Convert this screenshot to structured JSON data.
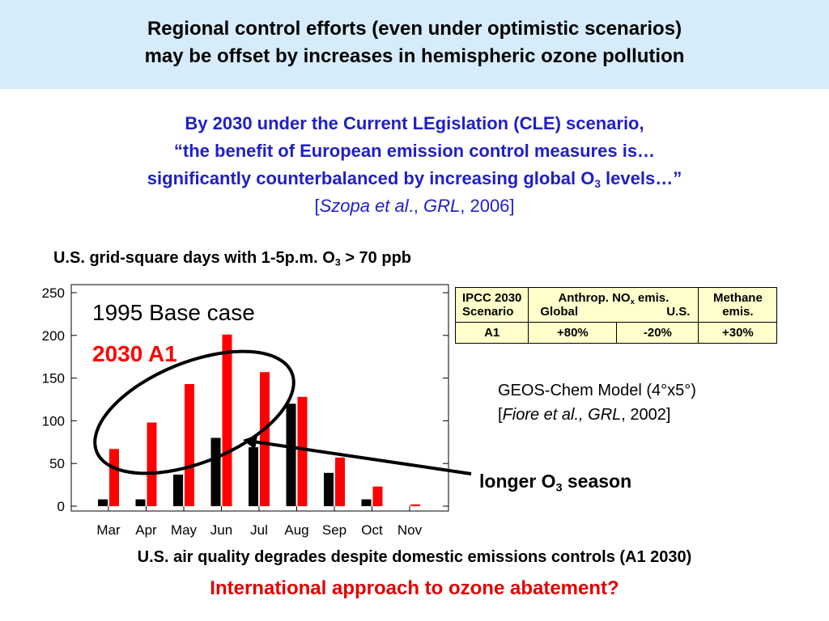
{
  "header": {
    "line1": "Regional control efforts (even under optimistic scenarios)",
    "line2": "may be offset by increases in hemispheric ozone pollution"
  },
  "quote": {
    "line1": "By 2030 under the Current LEgislation (CLE) scenario,",
    "line2": "“the benefit of European emission control measures is…",
    "line3_pre": "significantly counterbalanced by increasing global O",
    "line3_sub": "3",
    "line3_post": " levels…”",
    "cite_open": "[",
    "cite_author": "Szopa et al",
    "cite_mid": "., ",
    "cite_journal": "GRL",
    "cite_end": ", 2006]"
  },
  "chart_title": {
    "pre": "U.S. grid-square days with 1-5p.m. O",
    "sub": "3",
    "post": " > 70 ppb"
  },
  "chart_data": {
    "type": "bar",
    "categories": [
      "Mar",
      "Apr",
      "May",
      "Jun",
      "Jul",
      "Aug",
      "Sep",
      "Oct",
      "Nov"
    ],
    "series": [
      {
        "name": "1995 Base case",
        "color": "#000000",
        "values": [
          8,
          8,
          37,
          80,
          69,
          120,
          39,
          8,
          0
        ]
      },
      {
        "name": "2030 A1",
        "color": "#ff0000",
        "values": [
          67,
          98,
          143,
          201,
          157,
          128,
          57,
          23,
          2
        ]
      }
    ],
    "ylim": [
      0,
      250
    ],
    "yticks": [
      0,
      50,
      100,
      150,
      200,
      250
    ],
    "grid": false,
    "legend": "top-left",
    "annotation": "ellipse around Mar–Jul bars with arrow from 'longer O3 season'"
  },
  "table": {
    "h1a": "IPCC 2030",
    "h1b": "Scenario",
    "h2_pre": "Anthrop. NO",
    "h2_sub": "x",
    "h2_post": " emis.",
    "h2_global": "Global",
    "h2_us": "U.S.",
    "h3": "Methane emis.",
    "r1": "A1",
    "r2": "+80%",
    "r3": "-20%",
    "r4": "+30%"
  },
  "geos": {
    "line1": "GEOS-Chem Model (4°x5°)",
    "open": "[",
    "author": "Fiore et al., GRL",
    "end": ", 2002]"
  },
  "season": {
    "pre": "longer O",
    "sub": "3",
    "post": " season"
  },
  "bottom": {
    "line1": "U.S. air quality degrades despite domestic emissions controls (A1 2030)",
    "line2": "International approach to ozone abatement?"
  }
}
